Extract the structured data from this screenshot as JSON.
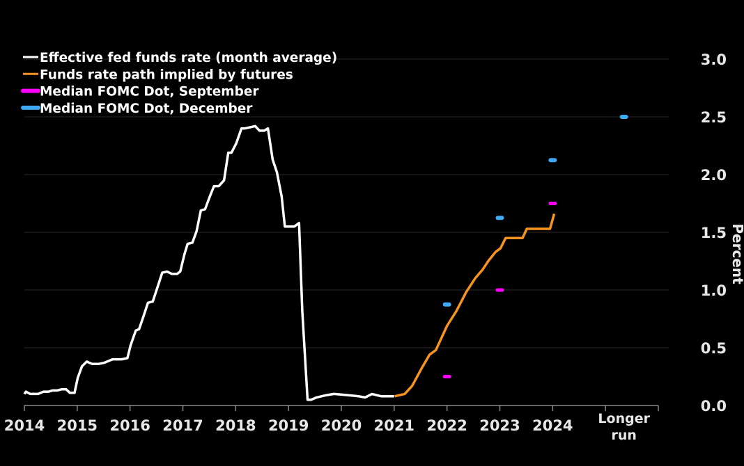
{
  "chart_data": {
    "type": "line",
    "title": "",
    "xlabel": "",
    "ylabel": "Percent",
    "xlim": [
      2014,
      2026
    ],
    "ylim": [
      0,
      3.0
    ],
    "grid": true,
    "legend_position": "top-left",
    "x_ticks": [
      {
        "x": 2014,
        "label": "2014"
      },
      {
        "x": 2015,
        "label": "2015"
      },
      {
        "x": 2016,
        "label": "2016"
      },
      {
        "x": 2017,
        "label": "2017"
      },
      {
        "x": 2018,
        "label": "2018"
      },
      {
        "x": 2019,
        "label": "2019"
      },
      {
        "x": 2020,
        "label": "2020"
      },
      {
        "x": 2021,
        "label": "2021"
      },
      {
        "x": 2022,
        "label": "2022"
      },
      {
        "x": 2023,
        "label": "2023"
      },
      {
        "x": 2024,
        "label": "2024"
      },
      {
        "x": 2025,
        "label": ""
      },
      {
        "x": 2026,
        "label": ""
      }
    ],
    "longer_run_label": [
      "Longer",
      "run"
    ],
    "longer_run_x": 2025.35,
    "y_ticks": [
      "0.0",
      "0.5",
      "1.0",
      "1.5",
      "2.0",
      "2.5",
      "3.0"
    ],
    "y_tick_values": [
      0,
      0.5,
      1.0,
      1.5,
      2.0,
      2.5,
      3.0
    ],
    "series": [
      {
        "name": "Effective fed funds rate (month average)",
        "kind": "line",
        "color": "#ffffff",
        "points": [
          [
            2014.0,
            0.1
          ],
          [
            2014.03,
            0.12
          ],
          [
            2014.11,
            0.1
          ],
          [
            2014.26,
            0.1
          ],
          [
            2014.36,
            0.12
          ],
          [
            2014.46,
            0.12
          ],
          [
            2014.53,
            0.13
          ],
          [
            2014.62,
            0.13
          ],
          [
            2014.7,
            0.14
          ],
          [
            2014.79,
            0.14
          ],
          [
            2014.86,
            0.11
          ],
          [
            2014.95,
            0.11
          ],
          [
            2015.01,
            0.24
          ],
          [
            2015.09,
            0.34
          ],
          [
            2015.18,
            0.38
          ],
          [
            2015.28,
            0.36
          ],
          [
            2015.41,
            0.36
          ],
          [
            2015.51,
            0.37
          ],
          [
            2015.67,
            0.4
          ],
          [
            2015.84,
            0.4
          ],
          [
            2015.95,
            0.41
          ],
          [
            2016.01,
            0.52
          ],
          [
            2016.11,
            0.65
          ],
          [
            2016.17,
            0.66
          ],
          [
            2016.26,
            0.78
          ],
          [
            2016.34,
            0.89
          ],
          [
            2016.43,
            0.9
          ],
          [
            2016.53,
            1.04
          ],
          [
            2016.61,
            1.15
          ],
          [
            2016.7,
            1.16
          ],
          [
            2016.79,
            1.14
          ],
          [
            2016.89,
            1.14
          ],
          [
            2016.95,
            1.16
          ],
          [
            2017.03,
            1.31
          ],
          [
            2017.09,
            1.4
          ],
          [
            2017.18,
            1.41
          ],
          [
            2017.26,
            1.51
          ],
          [
            2017.34,
            1.69
          ],
          [
            2017.42,
            1.7
          ],
          [
            2017.51,
            1.81
          ],
          [
            2017.59,
            1.9
          ],
          [
            2017.68,
            1.9
          ],
          [
            2017.78,
            1.95
          ],
          [
            2017.86,
            2.19
          ],
          [
            2017.92,
            2.19
          ],
          [
            2018.01,
            2.27
          ],
          [
            2018.11,
            2.4
          ],
          [
            2018.18,
            2.4
          ],
          [
            2018.37,
            2.42
          ],
          [
            2018.45,
            2.38
          ],
          [
            2018.54,
            2.38
          ],
          [
            2018.61,
            2.4
          ],
          [
            2018.7,
            2.13
          ],
          [
            2018.78,
            2.02
          ],
          [
            2018.87,
            1.81
          ],
          [
            2018.93,
            1.55
          ],
          [
            2019.11,
            1.55
          ],
          [
            2019.2,
            1.58
          ],
          [
            2019.26,
            0.82
          ],
          [
            2019.36,
            0.05
          ],
          [
            2019.43,
            0.05
          ],
          [
            2019.53,
            0.07
          ],
          [
            2019.72,
            0.09
          ],
          [
            2019.86,
            0.1
          ],
          [
            2020.12,
            0.09
          ],
          [
            2020.32,
            0.08
          ],
          [
            2020.45,
            0.07
          ],
          [
            2020.58,
            0.1
          ],
          [
            2020.75,
            0.08
          ],
          [
            2021.0,
            0.08
          ]
        ]
      },
      {
        "name": "Funds rate path implied by futures",
        "kind": "line",
        "color": "#f7931e",
        "points": [
          [
            2021.01,
            0.08
          ],
          [
            2021.2,
            0.1
          ],
          [
            2021.34,
            0.17
          ],
          [
            2021.53,
            0.33
          ],
          [
            2021.67,
            0.44
          ],
          [
            2021.79,
            0.48
          ],
          [
            2022.0,
            0.69
          ],
          [
            2022.18,
            0.82
          ],
          [
            2022.36,
            0.98
          ],
          [
            2022.53,
            1.1
          ],
          [
            2022.68,
            1.18
          ],
          [
            2022.78,
            1.25
          ],
          [
            2022.92,
            1.33
          ],
          [
            2023.01,
            1.36
          ],
          [
            2023.11,
            1.45
          ],
          [
            2023.43,
            1.45
          ],
          [
            2023.51,
            1.53
          ],
          [
            2023.95,
            1.53
          ],
          [
            2024.03,
            1.66
          ]
        ]
      },
      {
        "name": "Median FOMC Dot, September",
        "kind": "dot",
        "color": "#ff00ff",
        "points": [
          [
            2022,
            0.25
          ],
          [
            2023,
            1.0
          ],
          [
            2024,
            1.75
          ]
        ]
      },
      {
        "name": "Median FOMC Dot, December",
        "kind": "dot",
        "color": "#3fa9f5",
        "points": [
          [
            2022,
            0.875
          ],
          [
            2023,
            1.625
          ],
          [
            2024,
            2.125
          ],
          [
            2025.35,
            2.5
          ]
        ]
      }
    ]
  }
}
